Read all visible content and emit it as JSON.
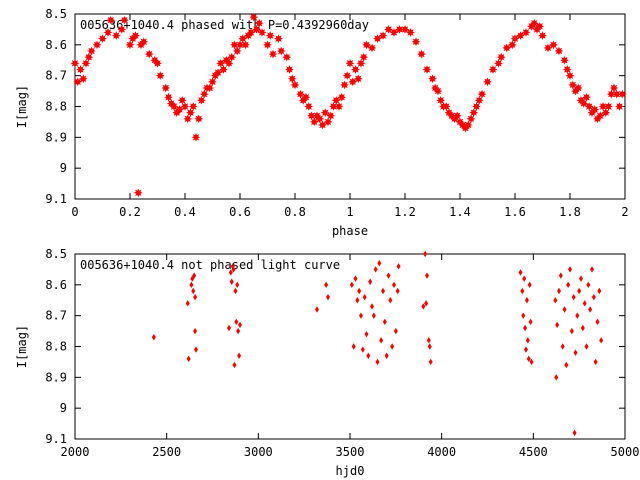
{
  "colors": {
    "points": "#ff0000",
    "axis": "#000000",
    "background": "#ffffff"
  },
  "chart_data": [
    {
      "type": "scatter",
      "title": "005636+1040.4 phased with P=0.4392960day",
      "xlabel": "phase",
      "ylabel": "I[mag]",
      "xlim": [
        0,
        2
      ],
      "ylim": [
        8.5,
        9.1
      ],
      "y_inverted": true,
      "xticks": [
        0,
        0.2,
        0.4,
        0.6,
        0.8,
        1,
        1.2,
        1.4,
        1.6,
        1.8,
        2
      ],
      "xtick_labels": [
        "0",
        "0.2",
        "0.4",
        "0.6",
        "0.8",
        "1",
        "1.2",
        "1.4",
        "1.6",
        "1.8",
        "2"
      ],
      "yticks": [
        8.5,
        8.6,
        8.7,
        8.8,
        8.9,
        9.0,
        9.1
      ],
      "ytick_labels": [
        "8.5",
        "8.6",
        "8.7",
        "8.8",
        "8.9",
        "9",
        "9.1"
      ],
      "grid": false,
      "marker": "star",
      "points": [
        [
          0.0,
          8.66
        ],
        [
          0.01,
          8.72
        ],
        [
          0.02,
          8.68
        ],
        [
          0.03,
          8.71
        ],
        [
          0.04,
          8.66
        ],
        [
          0.05,
          8.64
        ],
        [
          0.06,
          8.62
        ],
        [
          0.08,
          8.6
        ],
        [
          0.1,
          8.58
        ],
        [
          0.12,
          8.56
        ],
        [
          0.13,
          8.52
        ],
        [
          0.15,
          8.57
        ],
        [
          0.17,
          8.55
        ],
        [
          0.18,
          8.52
        ],
        [
          0.2,
          8.6
        ],
        [
          0.21,
          8.58
        ],
        [
          0.22,
          8.57
        ],
        [
          0.23,
          9.08
        ],
        [
          0.24,
          8.6
        ],
        [
          0.25,
          8.59
        ],
        [
          0.27,
          8.63
        ],
        [
          0.29,
          8.65
        ],
        [
          0.3,
          8.66
        ],
        [
          0.31,
          8.7
        ],
        [
          0.33,
          8.74
        ],
        [
          0.34,
          8.77
        ],
        [
          0.35,
          8.79
        ],
        [
          0.36,
          8.8
        ],
        [
          0.37,
          8.82
        ],
        [
          0.38,
          8.81
        ],
        [
          0.39,
          8.78
        ],
        [
          0.4,
          8.8
        ],
        [
          0.41,
          8.84
        ],
        [
          0.42,
          8.82
        ],
        [
          0.43,
          8.8
        ],
        [
          0.44,
          8.9
        ],
        [
          0.45,
          8.84
        ],
        [
          0.46,
          8.78
        ],
        [
          0.47,
          8.76
        ],
        [
          0.48,
          8.74
        ],
        [
          0.49,
          8.74
        ],
        [
          0.5,
          8.72
        ],
        [
          0.51,
          8.7
        ],
        [
          0.52,
          8.69
        ],
        [
          0.53,
          8.66
        ],
        [
          0.54,
          8.68
        ],
        [
          0.55,
          8.65
        ],
        [
          0.56,
          8.66
        ],
        [
          0.57,
          8.64
        ],
        [
          0.58,
          8.6
        ],
        [
          0.59,
          8.62
        ],
        [
          0.6,
          8.6
        ],
        [
          0.61,
          8.58
        ],
        [
          0.62,
          8.6
        ],
        [
          0.63,
          8.57
        ],
        [
          0.64,
          8.56
        ],
        [
          0.65,
          8.51
        ],
        [
          0.66,
          8.55
        ],
        [
          0.67,
          8.53
        ],
        [
          0.68,
          8.56
        ],
        [
          0.7,
          8.6
        ],
        [
          0.71,
          8.57
        ],
        [
          0.72,
          8.63
        ],
        [
          0.74,
          8.58
        ],
        [
          0.75,
          8.62
        ],
        [
          0.77,
          8.64
        ],
        [
          0.78,
          8.68
        ],
        [
          0.79,
          8.71
        ],
        [
          0.8,
          8.73
        ],
        [
          0.82,
          8.76
        ],
        [
          0.83,
          8.78
        ],
        [
          0.84,
          8.77
        ],
        [
          0.85,
          8.8
        ],
        [
          0.86,
          8.83
        ],
        [
          0.87,
          8.85
        ],
        [
          0.88,
          8.83
        ],
        [
          0.89,
          8.84
        ],
        [
          0.9,
          8.86
        ],
        [
          0.91,
          8.82
        ],
        [
          0.92,
          8.85
        ],
        [
          0.93,
          8.83
        ],
        [
          0.94,
          8.8
        ],
        [
          0.95,
          8.78
        ],
        [
          0.96,
          8.8
        ],
        [
          0.97,
          8.77
        ],
        [
          0.98,
          8.73
        ],
        [
          0.99,
          8.7
        ],
        [
          1.0,
          8.66
        ],
        [
          1.01,
          8.72
        ],
        [
          1.02,
          8.68
        ],
        [
          1.03,
          8.71
        ],
        [
          1.04,
          8.66
        ],
        [
          1.05,
          8.64
        ],
        [
          1.06,
          8.6
        ],
        [
          1.08,
          8.61
        ],
        [
          1.1,
          8.58
        ],
        [
          1.12,
          8.57
        ],
        [
          1.14,
          8.55
        ],
        [
          1.16,
          8.56
        ],
        [
          1.18,
          8.55
        ],
        [
          1.2,
          8.55
        ],
        [
          1.22,
          8.56
        ],
        [
          1.24,
          8.59
        ],
        [
          1.26,
          8.63
        ],
        [
          1.28,
          8.68
        ],
        [
          1.3,
          8.71
        ],
        [
          1.31,
          8.74
        ],
        [
          1.32,
          8.75
        ],
        [
          1.33,
          8.78
        ],
        [
          1.34,
          8.8
        ],
        [
          1.35,
          8.8
        ],
        [
          1.36,
          8.82
        ],
        [
          1.37,
          8.83
        ],
        [
          1.38,
          8.84
        ],
        [
          1.39,
          8.83
        ],
        [
          1.4,
          8.85
        ],
        [
          1.41,
          8.86
        ],
        [
          1.42,
          8.87
        ],
        [
          1.43,
          8.86
        ],
        [
          1.44,
          8.84
        ],
        [
          1.45,
          8.82
        ],
        [
          1.46,
          8.8
        ],
        [
          1.47,
          8.78
        ],
        [
          1.48,
          8.76
        ],
        [
          1.5,
          8.72
        ],
        [
          1.52,
          8.68
        ],
        [
          1.54,
          8.66
        ],
        [
          1.55,
          8.64
        ],
        [
          1.57,
          8.61
        ],
        [
          1.59,
          8.6
        ],
        [
          1.6,
          8.58
        ],
        [
          1.62,
          8.57
        ],
        [
          1.64,
          8.56
        ],
        [
          1.66,
          8.54
        ],
        [
          1.67,
          8.53
        ],
        [
          1.68,
          8.55
        ],
        [
          1.69,
          8.54
        ],
        [
          1.7,
          8.57
        ],
        [
          1.72,
          8.61
        ],
        [
          1.74,
          8.6
        ],
        [
          1.76,
          8.62
        ],
        [
          1.78,
          8.65
        ],
        [
          1.79,
          8.68
        ],
        [
          1.8,
          8.7
        ],
        [
          1.81,
          8.73
        ],
        [
          1.82,
          8.75
        ],
        [
          1.83,
          8.74
        ],
        [
          1.84,
          8.78
        ],
        [
          1.85,
          8.79
        ],
        [
          1.86,
          8.77
        ],
        [
          1.87,
          8.8
        ],
        [
          1.88,
          8.82
        ],
        [
          1.89,
          8.81
        ],
        [
          1.9,
          8.84
        ],
        [
          1.91,
          8.83
        ],
        [
          1.92,
          8.8
        ],
        [
          1.93,
          8.82
        ],
        [
          1.94,
          8.8
        ],
        [
          1.95,
          8.76
        ],
        [
          1.96,
          8.74
        ],
        [
          1.97,
          8.76
        ],
        [
          1.98,
          8.8
        ],
        [
          1.99,
          8.76
        ]
      ]
    },
    {
      "type": "scatter",
      "title": "005636+1040.4 not phased light curve",
      "xlabel": "hjd0",
      "ylabel": "I[mag]",
      "xlim": [
        2000,
        5000
      ],
      "ylim": [
        8.5,
        9.1
      ],
      "y_inverted": true,
      "xticks": [
        2000,
        2500,
        3000,
        3500,
        4000,
        4500,
        5000
      ],
      "xtick_labels": [
        "2000",
        "2500",
        "3000",
        "3500",
        "4000",
        "4500",
        "5000"
      ],
      "yticks": [
        8.5,
        8.6,
        8.7,
        8.8,
        8.9,
        9.0,
        9.1
      ],
      "ytick_labels": [
        "8.5",
        "8.6",
        "8.7",
        "8.8",
        "8.9",
        "9",
        "9.1"
      ],
      "grid": false,
      "marker": "diamond",
      "points": [
        [
          2430,
          8.77
        ],
        [
          2615,
          8.66
        ],
        [
          2620,
          8.84
        ],
        [
          2635,
          8.6
        ],
        [
          2640,
          8.58
        ],
        [
          2645,
          8.62
        ],
        [
          2650,
          8.57
        ],
        [
          2655,
          8.75
        ],
        [
          2660,
          8.81
        ],
        [
          2655,
          8.64
        ],
        [
          2840,
          8.74
        ],
        [
          2850,
          8.56
        ],
        [
          2855,
          8.59
        ],
        [
          2860,
          8.54
        ],
        [
          2865,
          8.55
        ],
        [
          2870,
          8.86
        ],
        [
          2875,
          8.62
        ],
        [
          2880,
          8.72
        ],
        [
          2885,
          8.6
        ],
        [
          2890,
          8.75
        ],
        [
          2895,
          8.83
        ],
        [
          2900,
          8.73
        ],
        [
          3320,
          8.68
        ],
        [
          3370,
          8.6
        ],
        [
          3380,
          8.64
        ],
        [
          3510,
          8.6
        ],
        [
          3520,
          8.8
        ],
        [
          3530,
          8.58
        ],
        [
          3540,
          8.65
        ],
        [
          3550,
          8.62
        ],
        [
          3560,
          8.7
        ],
        [
          3570,
          8.81
        ],
        [
          3580,
          8.64
        ],
        [
          3590,
          8.76
        ],
        [
          3600,
          8.83
        ],
        [
          3610,
          8.59
        ],
        [
          3620,
          8.67
        ],
        [
          3630,
          8.7
        ],
        [
          3640,
          8.55
        ],
        [
          3650,
          8.85
        ],
        [
          3660,
          8.53
        ],
        [
          3670,
          8.78
        ],
        [
          3680,
          8.62
        ],
        [
          3690,
          8.72
        ],
        [
          3700,
          8.83
        ],
        [
          3710,
          8.57
        ],
        [
          3720,
          8.65
        ],
        [
          3730,
          8.8
        ],
        [
          3740,
          8.6
        ],
        [
          3750,
          8.75
        ],
        [
          3760,
          8.62
        ],
        [
          3765,
          8.54
        ],
        [
          3900,
          8.67
        ],
        [
          3910,
          8.5
        ],
        [
          3915,
          8.66
        ],
        [
          3920,
          8.57
        ],
        [
          3930,
          8.78
        ],
        [
          3935,
          8.8
        ],
        [
          3940,
          8.85
        ],
        [
          4430,
          8.56
        ],
        [
          4440,
          8.62
        ],
        [
          4445,
          8.7
        ],
        [
          4450,
          8.58
        ],
        [
          4455,
          8.74
        ],
        [
          4460,
          8.81
        ],
        [
          4465,
          8.65
        ],
        [
          4470,
          8.78
        ],
        [
          4475,
          8.84
        ],
        [
          4480,
          8.6
        ],
        [
          4485,
          8.72
        ],
        [
          4490,
          8.85
        ],
        [
          4620,
          8.65
        ],
        [
          4625,
          8.9
        ],
        [
          4630,
          8.73
        ],
        [
          4640,
          8.62
        ],
        [
          4650,
          8.57
        ],
        [
          4660,
          8.8
        ],
        [
          4670,
          8.68
        ],
        [
          4680,
          8.86
        ],
        [
          4690,
          8.6
        ],
        [
          4700,
          8.55
        ],
        [
          4710,
          8.75
        ],
        [
          4720,
          8.64
        ],
        [
          4725,
          9.08
        ],
        [
          4730,
          8.82
        ],
        [
          4740,
          8.7
        ],
        [
          4750,
          8.62
        ],
        [
          4760,
          8.58
        ],
        [
          4770,
          8.74
        ],
        [
          4780,
          8.66
        ],
        [
          4790,
          8.8
        ],
        [
          4800,
          8.6
        ],
        [
          4810,
          8.68
        ],
        [
          4820,
          8.55
        ],
        [
          4830,
          8.64
        ],
        [
          4840,
          8.85
        ],
        [
          4850,
          8.72
        ],
        [
          4860,
          8.62
        ],
        [
          4870,
          8.78
        ]
      ]
    }
  ]
}
